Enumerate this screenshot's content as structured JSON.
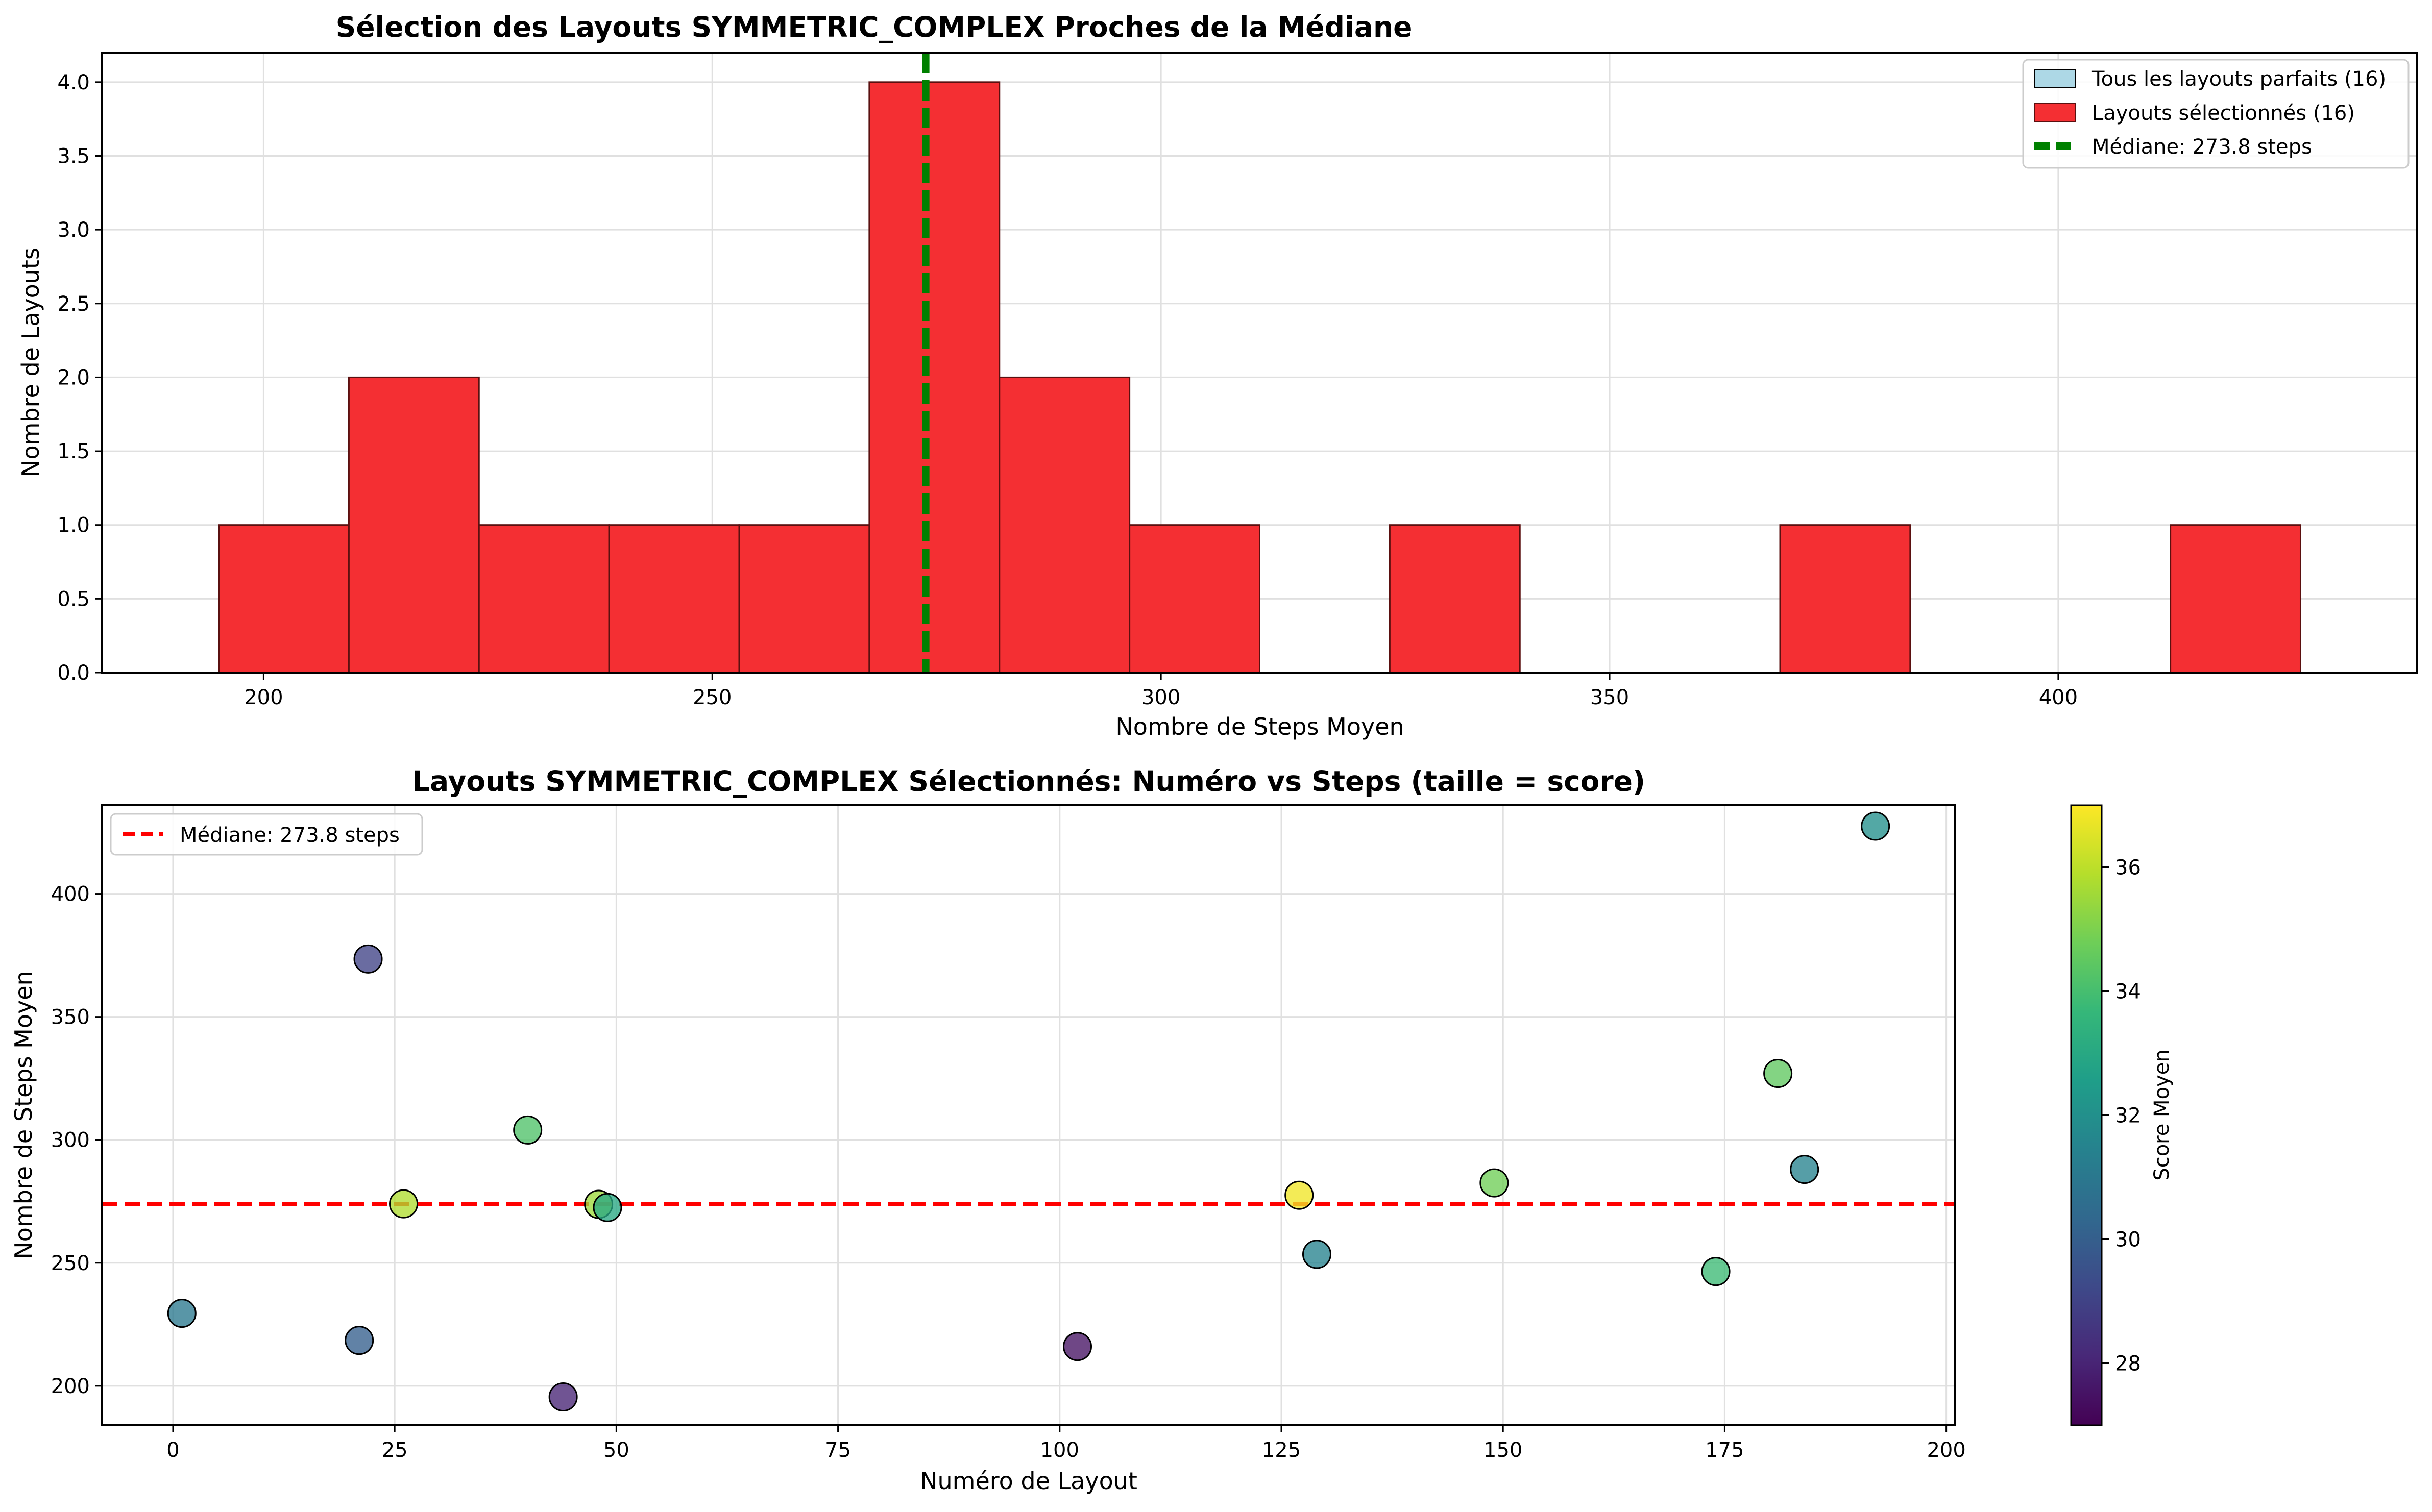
{
  "chart_data": [
    {
      "type": "bar",
      "subtype": "histogram",
      "title": "Sélection des Layouts SYMMETRIC_COMPLEX Proches de la Médiane",
      "xlabel": "Nombre de Steps Moyen",
      "ylabel": "Nombre de Layouts",
      "xlim": [
        182,
        440
      ],
      "ylim": [
        0,
        4.2
      ],
      "xticks": [
        "200",
        "250",
        "300",
        "350",
        "400"
      ],
      "yticks": [
        "0.0",
        "0.5",
        "1.0",
        "1.5",
        "2.0",
        "2.5",
        "3.0",
        "3.5",
        "4.0"
      ],
      "grid": true,
      "legend_position": "top-right",
      "bins": [
        {
          "start": 195.0,
          "end": 209.5,
          "count": 1
        },
        {
          "start": 209.5,
          "end": 224.0,
          "count": 2
        },
        {
          "start": 224.0,
          "end": 238.5,
          "count": 1
        },
        {
          "start": 238.5,
          "end": 253.0,
          "count": 1
        },
        {
          "start": 253.0,
          "end": 267.5,
          "count": 1
        },
        {
          "start": 267.5,
          "end": 282.0,
          "count": 4
        },
        {
          "start": 282.0,
          "end": 296.5,
          "count": 2
        },
        {
          "start": 296.5,
          "end": 311.0,
          "count": 1
        },
        {
          "start": 311.0,
          "end": 325.5,
          "count": 0
        },
        {
          "start": 325.5,
          "end": 340.0,
          "count": 1
        },
        {
          "start": 340.0,
          "end": 354.5,
          "count": 0
        },
        {
          "start": 354.5,
          "end": 369.0,
          "count": 0
        },
        {
          "start": 369.0,
          "end": 383.5,
          "count": 1
        },
        {
          "start": 383.5,
          "end": 398.0,
          "count": 0
        },
        {
          "start": 398.0,
          "end": 412.5,
          "count": 0
        },
        {
          "start": 412.5,
          "end": 427.0,
          "count": 1
        }
      ],
      "median": 273.8,
      "legend": [
        {
          "label": "Tous les layouts parfaits (16)",
          "color": "#add8e6",
          "kind": "patch"
        },
        {
          "label": "Layouts sélectionnés (16)",
          "color": "#f42f33",
          "kind": "patch"
        },
        {
          "label": "Médiane: 273.8 steps",
          "color": "#008000",
          "kind": "line"
        }
      ],
      "colors": {
        "selected": "#f42f33",
        "edge": "#5a1010",
        "median": "#008000"
      }
    },
    {
      "type": "scatter",
      "title": "Layouts SYMMETRIC_COMPLEX Sélectionnés: Numéro vs Steps (taille = score)",
      "xlabel": "Numéro de Layout",
      "ylabel": "Nombre de Steps Moyen",
      "xlim": [
        -8,
        201
      ],
      "ylim": [
        184,
        436
      ],
      "xticks": [
        "0",
        "25",
        "50",
        "75",
        "100",
        "125",
        "150",
        "175",
        "200"
      ],
      "yticks": [
        "200",
        "250",
        "300",
        "350",
        "400"
      ],
      "grid": true,
      "legend_position": "top-left",
      "median": 273.8,
      "legend": [
        {
          "label": "Médiane: 273.8 steps",
          "color": "#ff0000",
          "kind": "dashed-line"
        }
      ],
      "colorbar": {
        "label": "Score Moyen",
        "min": 27,
        "max": 37,
        "ticks": [
          "28",
          "30",
          "32",
          "34",
          "36"
        ],
        "colormap": "viridis"
      },
      "points": [
        {
          "x": 1,
          "y": 229.5,
          "score": 31.0
        },
        {
          "x": 21,
          "y": 218.5,
          "score": 30.0
        },
        {
          "x": 22,
          "y": 373.5,
          "score": 29.0
        },
        {
          "x": 26,
          "y": 274.0,
          "score": 35.8
        },
        {
          "x": 40,
          "y": 304.0,
          "score": 34.2
        },
        {
          "x": 44,
          "y": 195.5,
          "score": 28.0
        },
        {
          "x": 48,
          "y": 273.8,
          "score": 35.5
        },
        {
          "x": 49,
          "y": 272.5,
          "score": 33.0
        },
        {
          "x": 102,
          "y": 216.0,
          "score": 27.5
        },
        {
          "x": 127,
          "y": 277.5,
          "score": 36.8
        },
        {
          "x": 129,
          "y": 253.5,
          "score": 31.5
        },
        {
          "x": 149,
          "y": 282.5,
          "score": 34.8
        },
        {
          "x": 174,
          "y": 246.5,
          "score": 33.8
        },
        {
          "x": 181,
          "y": 327.0,
          "score": 34.5
        },
        {
          "x": 184,
          "y": 288.0,
          "score": 31.5
        },
        {
          "x": 192,
          "y": 427.5,
          "score": 32.0
        }
      ]
    }
  ]
}
